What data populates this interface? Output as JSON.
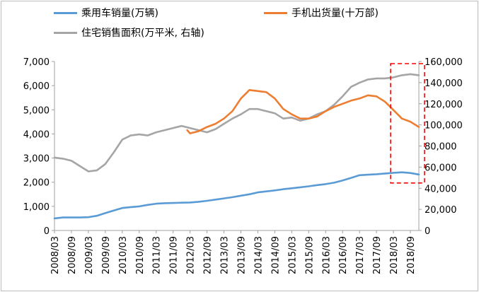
{
  "chart_data": {
    "type": "line",
    "colors": {
      "cars": "#5b9bd5",
      "phones": "#ed7d31",
      "housing": "#a5a5a5",
      "highlight": "#ff0000"
    },
    "x_tick_labels": [
      "2008/03",
      "2008/09",
      "2009/03",
      "2009/09",
      "2010/03",
      "2010/09",
      "2011/03",
      "2011/09",
      "2012/03",
      "2012/09",
      "2013/03",
      "2013/09",
      "2014/03",
      "2014/09",
      "2015/03",
      "2015/09",
      "2016/03",
      "2016/09",
      "2017/03",
      "2017/09",
      "2018/03",
      "2018/09"
    ],
    "y_left_ticks": [
      "0",
      "1,000",
      "2,000",
      "3,000",
      "4,000",
      "5,000",
      "6,000",
      "7,000"
    ],
    "y_right_ticks": [
      "0",
      "20,000",
      "40,000",
      "60,000",
      "80,000",
      "100,000",
      "120,000",
      "140,000",
      "160,000"
    ],
    "ylim_left": [
      0,
      7000
    ],
    "ylim_right": [
      0,
      160000
    ],
    "highlight_box": {
      "x_from": "2018/03",
      "x_to": "2018/12",
      "y_right_from": 45000,
      "y_right_to": 158000
    },
    "series": [
      {
        "name": "乘用车销量(万辆)",
        "key": "cars",
        "axis": "left",
        "points": [
          [
            "2008/03",
            500
          ],
          [
            "2008/06",
            540
          ],
          [
            "2008/09",
            540
          ],
          [
            "2008/12",
            540
          ],
          [
            "2009/03",
            550
          ],
          [
            "2009/06",
            610
          ],
          [
            "2009/09",
            720
          ],
          [
            "2009/12",
            830
          ],
          [
            "2010/03",
            930
          ],
          [
            "2010/06",
            970
          ],
          [
            "2010/09",
            1000
          ],
          [
            "2010/12",
            1060
          ],
          [
            "2011/03",
            1110
          ],
          [
            "2011/06",
            1130
          ],
          [
            "2011/09",
            1140
          ],
          [
            "2011/12",
            1150
          ],
          [
            "2012/03",
            1160
          ],
          [
            "2012/06",
            1190
          ],
          [
            "2012/09",
            1230
          ],
          [
            "2012/12",
            1280
          ],
          [
            "2013/03",
            1330
          ],
          [
            "2013/06",
            1380
          ],
          [
            "2013/09",
            1440
          ],
          [
            "2013/12",
            1500
          ],
          [
            "2014/03",
            1580
          ],
          [
            "2014/06",
            1620
          ],
          [
            "2014/09",
            1660
          ],
          [
            "2014/12",
            1710
          ],
          [
            "2015/03",
            1750
          ],
          [
            "2015/06",
            1790
          ],
          [
            "2015/09",
            1830
          ],
          [
            "2015/12",
            1880
          ],
          [
            "2016/03",
            1920
          ],
          [
            "2016/06",
            1980
          ],
          [
            "2016/09",
            2070
          ],
          [
            "2016/12",
            2180
          ],
          [
            "2017/03",
            2290
          ],
          [
            "2017/06",
            2310
          ],
          [
            "2017/09",
            2330
          ],
          [
            "2017/12",
            2360
          ],
          [
            "2018/03",
            2390
          ],
          [
            "2018/06",
            2410
          ],
          [
            "2018/09",
            2380
          ],
          [
            "2018/12",
            2320
          ]
        ]
      },
      {
        "name": "手机出货量(十万部)",
        "key": "phones",
        "axis": "right",
        "points": [
          [
            "2012/02",
            95000
          ],
          [
            "2012/03",
            92000
          ],
          [
            "2012/06",
            94000
          ],
          [
            "2012/09",
            98000
          ],
          [
            "2012/12",
            101000
          ],
          [
            "2013/03",
            106000
          ],
          [
            "2013/06",
            113000
          ],
          [
            "2013/09",
            125000
          ],
          [
            "2013/12",
            133000
          ],
          [
            "2014/03",
            132000
          ],
          [
            "2014/06",
            131000
          ],
          [
            "2014/09",
            125000
          ],
          [
            "2014/12",
            115000
          ],
          [
            "2015/03",
            110000
          ],
          [
            "2015/06",
            106000
          ],
          [
            "2015/09",
            106000
          ],
          [
            "2015/12",
            108000
          ],
          [
            "2016/03",
            113000
          ],
          [
            "2016/06",
            117000
          ],
          [
            "2016/09",
            120000
          ],
          [
            "2016/12",
            123000
          ],
          [
            "2017/03",
            125000
          ],
          [
            "2017/06",
            128000
          ],
          [
            "2017/09",
            127000
          ],
          [
            "2017/12",
            122000
          ],
          [
            "2018/03",
            114000
          ],
          [
            "2018/06",
            106000
          ],
          [
            "2018/09",
            103000
          ],
          [
            "2018/12",
            98000
          ]
        ]
      },
      {
        "name": "住宅销售面积(万平米, 右轴)",
        "key": "housing",
        "axis": "right",
        "points": [
          [
            "2008/03",
            69000
          ],
          [
            "2008/06",
            68000
          ],
          [
            "2008/09",
            66000
          ],
          [
            "2008/12",
            61000
          ],
          [
            "2009/03",
            56000
          ],
          [
            "2009/06",
            57000
          ],
          [
            "2009/09",
            63000
          ],
          [
            "2009/12",
            74000
          ],
          [
            "2010/03",
            86000
          ],
          [
            "2010/06",
            90000
          ],
          [
            "2010/09",
            91000
          ],
          [
            "2010/12",
            90000
          ],
          [
            "2011/03",
            93000
          ],
          [
            "2011/06",
            95000
          ],
          [
            "2011/09",
            97000
          ],
          [
            "2011/12",
            99000
          ],
          [
            "2012/03",
            97000
          ],
          [
            "2012/06",
            95000
          ],
          [
            "2012/09",
            93000
          ],
          [
            "2012/12",
            96000
          ],
          [
            "2013/03",
            101000
          ],
          [
            "2013/06",
            106000
          ],
          [
            "2013/09",
            110000
          ],
          [
            "2013/12",
            115000
          ],
          [
            "2014/03",
            115000
          ],
          [
            "2014/06",
            113000
          ],
          [
            "2014/09",
            111000
          ],
          [
            "2014/12",
            106000
          ],
          [
            "2015/03",
            107000
          ],
          [
            "2015/06",
            104000
          ],
          [
            "2015/09",
            106000
          ],
          [
            "2015/12",
            110000
          ],
          [
            "2016/03",
            113000
          ],
          [
            "2016/06",
            119000
          ],
          [
            "2016/09",
            127000
          ],
          [
            "2016/12",
            136000
          ],
          [
            "2017/03",
            140000
          ],
          [
            "2017/06",
            143000
          ],
          [
            "2017/09",
            144000
          ],
          [
            "2017/12",
            144000
          ],
          [
            "2018/03",
            145000
          ],
          [
            "2018/06",
            147000
          ],
          [
            "2018/09",
            148000
          ],
          [
            "2018/12",
            147000
          ]
        ]
      }
    ],
    "legend": [
      {
        "label": "乘用车销量(万辆)",
        "key": "cars"
      },
      {
        "label": "手机出货量(十万部)",
        "key": "phones"
      },
      {
        "label": "住宅销售面积(万平米, 右轴)",
        "key": "housing"
      }
    ]
  }
}
